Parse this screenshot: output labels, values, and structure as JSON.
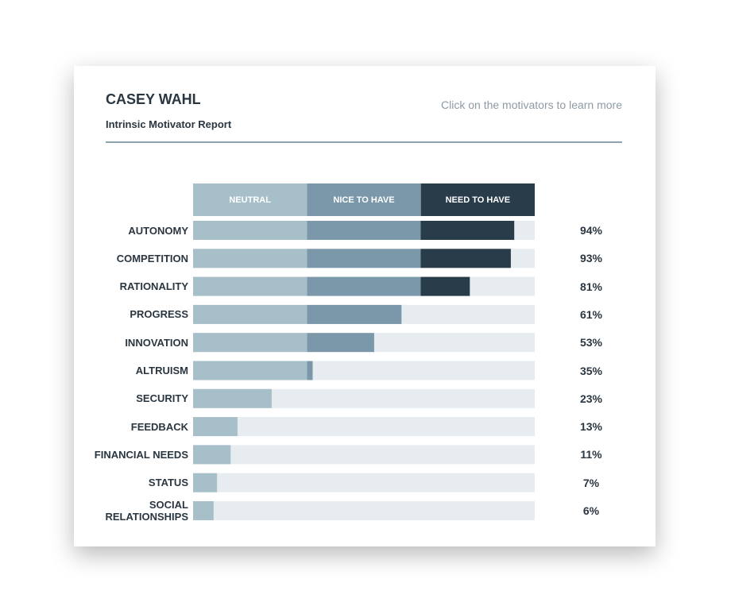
{
  "chart_data": {
    "type": "bar",
    "title": "CASEY WAHL",
    "subtitle": "Intrinsic Motivator Report",
    "annotation": "Click on the motivators to learn more",
    "bands": [
      {
        "name": "NEUTRAL",
        "color": "#a7bfc9"
      },
      {
        "name": "NICE TO HAVE",
        "color": "#7b98ab"
      },
      {
        "name": "NEED TO HAVE",
        "color": "#293c4a"
      }
    ],
    "track_color": "#e6ecf0",
    "categories": [
      "AUTONOMY",
      "COMPETITION",
      "RATIONALITY",
      "PROGRESS",
      "INNOVATION",
      "ALTRUISM",
      "SECURITY",
      "FEEDBACK",
      "FINANCIAL NEEDS",
      "STATUS",
      "SOCIAL RELATIONSHIPS"
    ],
    "values": [
      94,
      93,
      81,
      61,
      53,
      35,
      23,
      13,
      11,
      7,
      6
    ],
    "value_labels": [
      "94%",
      "93%",
      "81%",
      "61%",
      "53%",
      "35%",
      "23%",
      "13%",
      "11%",
      "7%",
      "6%"
    ],
    "xlim": [
      0,
      100
    ]
  }
}
